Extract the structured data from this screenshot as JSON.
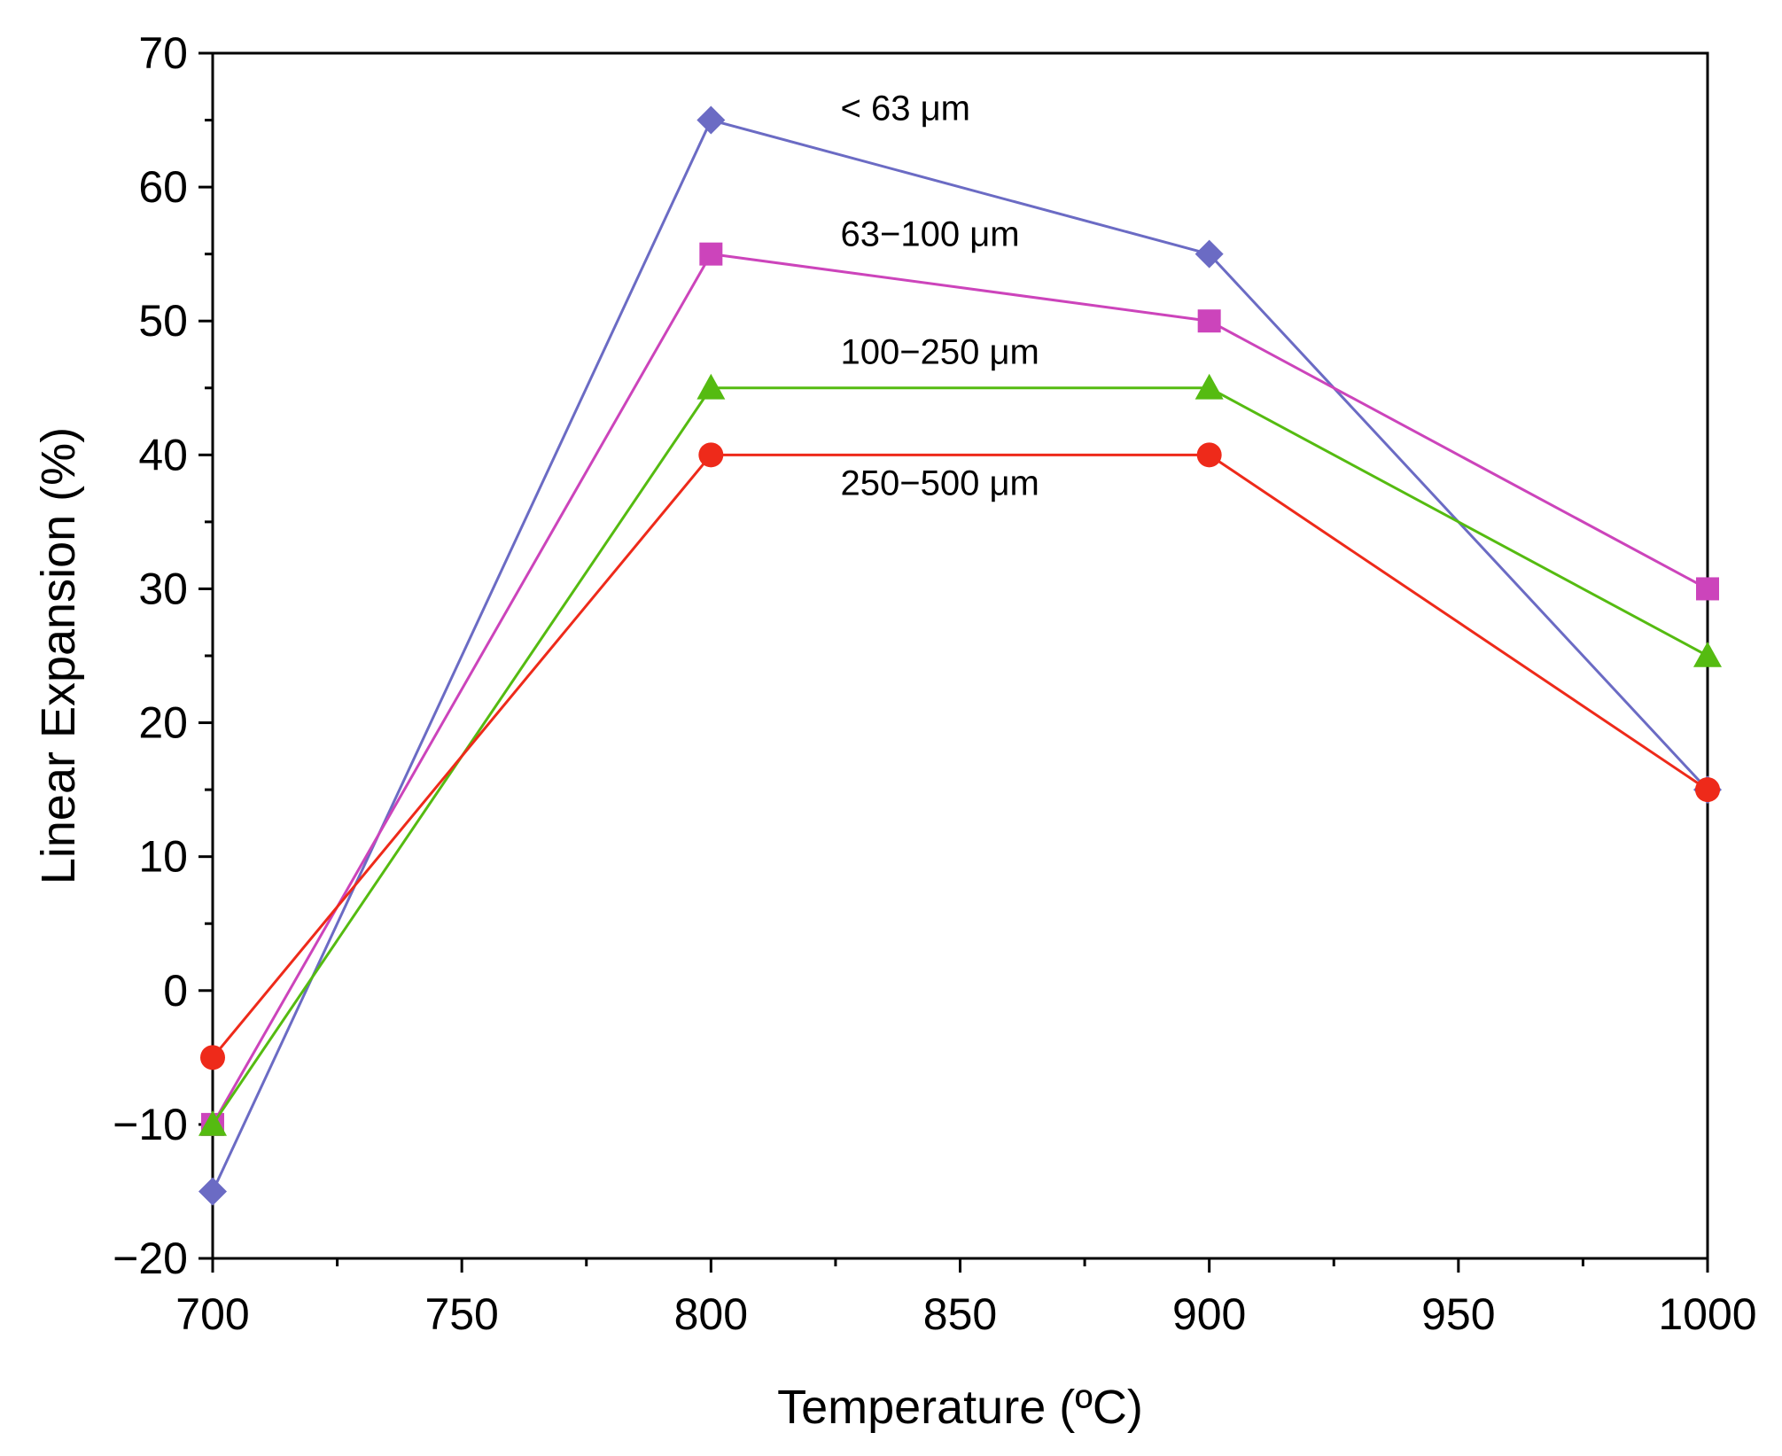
{
  "chart_data": {
    "type": "line",
    "title": "",
    "xlabel": "Temperature (ºC)",
    "ylabel": "Linear Expansion (%)",
    "xlim": [
      700,
      1000
    ],
    "ylim": [
      -20,
      70
    ],
    "x_ticks": [
      700,
      750,
      800,
      850,
      900,
      950,
      1000
    ],
    "x_tick_labels": [
      "700",
      "750",
      "800",
      "850",
      "900",
      "950",
      "1000"
    ],
    "y_ticks": [
      -20,
      -10,
      0,
      10,
      20,
      30,
      40,
      50,
      60,
      70
    ],
    "y_tick_labels": [
      "−20",
      "−10",
      "0",
      "10",
      "20",
      "30",
      "40",
      "50",
      "60",
      "70"
    ],
    "grid": false,
    "x": [
      700,
      800,
      900,
      1000
    ],
    "series": [
      {
        "name": "< 63 μm",
        "values": [
          -15,
          65,
          55,
          15
        ],
        "color": "#6b6bc4",
        "marker": "diamond",
        "label_at": [
          850,
          65
        ]
      },
      {
        "name": "63−100 μm",
        "values": [
          -10,
          55,
          50,
          30
        ],
        "color": "#cc44bb",
        "marker": "square",
        "label_at": [
          850,
          55.6
        ]
      },
      {
        "name": "100−250 μm",
        "values": [
          -10,
          45,
          45,
          25
        ],
        "color": "#55bb11",
        "marker": "triangle",
        "label_at": [
          850,
          46.8
        ]
      },
      {
        "name": "250−500 μm",
        "values": [
          -5,
          40,
          40,
          15
        ],
        "color": "#ee2a1a",
        "marker": "circle",
        "label_at": [
          850,
          37
        ]
      }
    ]
  }
}
